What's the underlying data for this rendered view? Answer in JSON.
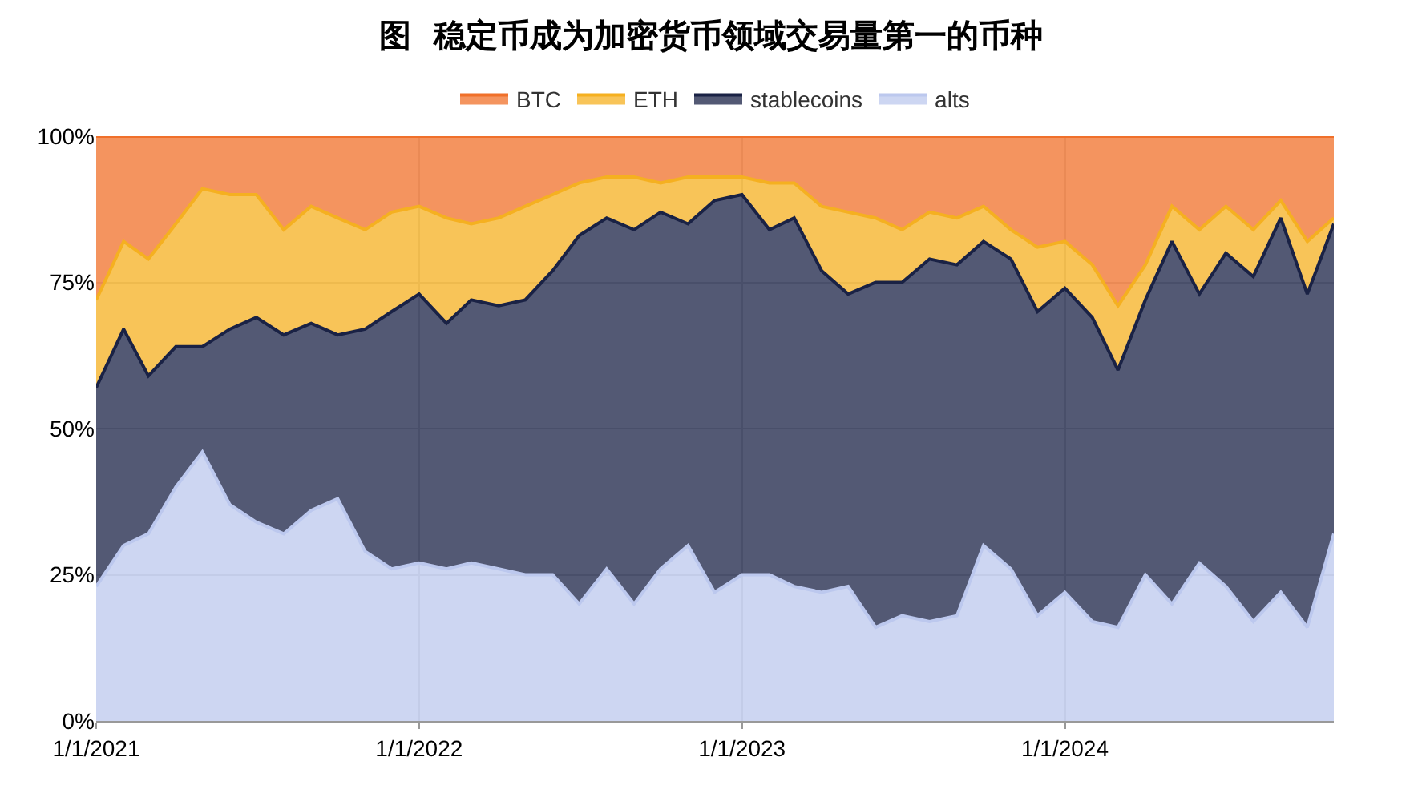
{
  "chart_data": {
    "type": "area",
    "title": "图  稳定币成为加密货币领域交易量第一的币种",
    "stacked": true,
    "x": [
      "2021-01-01",
      "2021-02-01",
      "2021-03-01",
      "2021-04-01",
      "2021-05-01",
      "2021-06-01",
      "2021-07-01",
      "2021-08-01",
      "2021-09-01",
      "2021-10-01",
      "2021-11-01",
      "2021-12-01",
      "2022-01-01",
      "2022-02-01",
      "2022-03-01",
      "2022-04-01",
      "2022-05-01",
      "2022-06-01",
      "2022-07-01",
      "2022-08-01",
      "2022-09-01",
      "2022-10-01",
      "2022-11-01",
      "2022-12-01",
      "2023-01-01",
      "2023-02-01",
      "2023-03-01",
      "2023-04-01",
      "2023-05-01",
      "2023-06-01",
      "2023-07-01",
      "2023-08-01",
      "2023-09-01",
      "2023-10-01",
      "2023-11-01",
      "2023-12-01",
      "2024-01-01",
      "2024-02-01",
      "2024-03-01",
      "2024-04-01",
      "2024-05-01",
      "2024-06-01",
      "2024-07-01",
      "2024-08-01",
      "2024-09-01",
      "2024-10-01",
      "2024-10-31"
    ],
    "series": [
      {
        "name": "alts",
        "color": "#bcc8ee",
        "values": [
          23,
          30,
          32,
          40,
          46,
          37,
          34,
          32,
          36,
          38,
          29,
          26,
          27,
          26,
          27,
          26,
          25,
          25,
          20,
          26,
          20,
          26,
          30,
          22,
          25,
          25,
          23,
          22,
          23,
          16,
          18,
          17,
          18,
          30,
          26,
          18,
          22,
          17,
          16,
          25,
          20,
          27,
          23,
          17,
          22,
          16,
          32
        ]
      },
      {
        "name": "stablecoins",
        "color": "#1a2245",
        "values": [
          34,
          37,
          27,
          24,
          18,
          30,
          35,
          34,
          32,
          28,
          38,
          44,
          46,
          42,
          45,
          45,
          47,
          52,
          63,
          60,
          64,
          61,
          55,
          67,
          65,
          59,
          63,
          55,
          50,
          59,
          57,
          62,
          60,
          52,
          53,
          52,
          52,
          52,
          44,
          47,
          62,
          46,
          57,
          59,
          64,
          57,
          53
        ]
      },
      {
        "name": "ETH",
        "color": "#f5b020",
        "values": [
          15,
          15,
          20,
          21,
          27,
          23,
          21,
          18,
          20,
          20,
          17,
          17,
          15,
          18,
          13,
          15,
          16,
          13,
          9,
          7,
          9,
          5,
          8,
          4,
          3,
          8,
          6,
          11,
          14,
          11,
          9,
          8,
          8,
          6,
          5,
          11,
          8,
          9,
          11,
          6,
          6,
          11,
          8,
          8,
          3,
          9,
          1
        ]
      },
      {
        "name": "BTC",
        "color": "#f0702a",
        "values": [
          28,
          18,
          21,
          15,
          9,
          10,
          10,
          16,
          12,
          14,
          16,
          13,
          12,
          14,
          15,
          14,
          12,
          10,
          8,
          7,
          7,
          8,
          7,
          7,
          7,
          8,
          8,
          12,
          13,
          14,
          16,
          13,
          14,
          12,
          16,
          19,
          18,
          22,
          29,
          22,
          12,
          16,
          12,
          16,
          11,
          18,
          14
        ]
      }
    ],
    "xlim": [
      "2021-01-01",
      "2024-10-31"
    ],
    "xticks": [
      {
        "value": "2021-01-01",
        "label": "1/1/2021"
      },
      {
        "value": "2022-01-01",
        "label": "1/1/2022"
      },
      {
        "value": "2023-01-01",
        "label": "1/1/2023"
      },
      {
        "value": "2024-01-01",
        "label": "1/1/2024"
      }
    ],
    "ylim": [
      0,
      100
    ],
    "yticks": [
      {
        "value": 0,
        "label": "0%"
      },
      {
        "value": 25,
        "label": "25%"
      },
      {
        "value": 50,
        "label": "50%"
      },
      {
        "value": 75,
        "label": "75%"
      },
      {
        "value": 100,
        "label": "100%"
      }
    ],
    "grid": true,
    "legend": "top"
  }
}
